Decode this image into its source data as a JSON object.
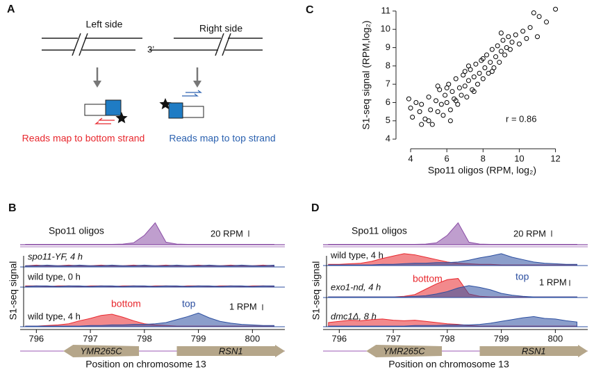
{
  "panel_a": {
    "label": "A",
    "left_side": "Left side",
    "right_side": "Right side",
    "end_label": "3’",
    "left_caption": "Reads map to bottom strand",
    "right_caption": "Reads map to top strand"
  },
  "chart_data": [
    {
      "type": "scatter",
      "label": "C",
      "xlabel": "Spo11 oligos (RPM, log₂)",
      "ylabel": "S1-seq signal (RPM,log₂)",
      "annotation": "r = 0.86",
      "color": "#000000",
      "xlim": [
        3.5,
        12.4
      ],
      "ylim": [
        3.7,
        11.3
      ],
      "xticks": [
        4,
        6,
        8,
        10,
        12
      ],
      "yticks": [
        4,
        5,
        6,
        7,
        8,
        9,
        10,
        11
      ],
      "x": [
        4.0,
        4.1,
        4.3,
        4.5,
        4.6,
        4.8,
        5.0,
        5.1,
        5.2,
        5.4,
        5.5,
        5.6,
        5.7,
        5.8,
        5.9,
        6.0,
        6.1,
        6.2,
        6.3,
        6.4,
        6.5,
        6.6,
        6.7,
        6.8,
        6.9,
        7.0,
        7.1,
        7.2,
        7.3,
        7.4,
        7.5,
        7.6,
        7.7,
        7.8,
        7.9,
        8.0,
        8.1,
        8.2,
        8.3,
        8.4,
        8.5,
        8.6,
        8.7,
        8.8,
        8.9,
        9.0,
        9.1,
        9.2,
        9.3,
        9.4,
        9.5,
        9.6,
        9.8,
        10.0,
        10.2,
        10.4,
        10.6,
        11.0,
        11.1,
        11.5,
        12.0,
        5.0,
        5.5,
        6.0,
        6.5,
        7.0,
        7.5,
        8.0,
        8.5,
        9.0,
        6.2,
        7.2,
        4.6,
        3.9,
        10.8
      ],
      "y": [
        5.7,
        5.2,
        6.0,
        5.5,
        5.9,
        5.1,
        6.3,
        5.6,
        4.8,
        6.1,
        5.5,
        6.7,
        5.9,
        5.3,
        6.4,
        6.0,
        7.0,
        5.6,
        6.6,
        6.2,
        7.3,
        5.9,
        6.8,
        6.4,
        7.5,
        6.9,
        6.3,
        7.2,
        7.8,
        6.7,
        7.4,
        8.1,
        7.0,
        7.6,
        8.3,
        7.3,
        7.9,
        8.6,
        7.6,
        8.2,
        8.9,
        7.9,
        8.5,
        9.1,
        8.2,
        8.8,
        9.4,
        8.6,
        9.0,
        9.6,
        8.9,
        9.3,
        9.7,
        9.2,
        9.9,
        9.5,
        10.1,
        9.6,
        10.7,
        10.4,
        11.1,
        5.0,
        6.9,
        6.8,
        6.1,
        7.7,
        6.6,
        8.4,
        7.7,
        9.8,
        5.0,
        8.0,
        4.8,
        6.2,
        10.9
      ]
    },
    {
      "type": "tracks",
      "label": "B",
      "xlabel": "Position on chromosome 13",
      "ylabel": "S1-seq signal",
      "xlim": [
        795.7,
        800.6
      ],
      "xticks": [
        796,
        797,
        798,
        799,
        800
      ],
      "x": [
        795.8,
        796.0,
        796.2,
        796.4,
        796.6,
        796.8,
        797.0,
        797.2,
        797.4,
        797.6,
        797.8,
        798.0,
        798.2,
        798.4,
        798.6,
        798.8,
        799.0,
        799.2,
        799.4,
        799.6,
        799.8,
        800.0,
        800.2,
        800.4
      ],
      "genes": [
        {
          "name": "YMR265C",
          "start": 796.5,
          "end": 797.9
        },
        {
          "name": "RSN1",
          "start": 798.6,
          "end": 800.6
        }
      ],
      "signal": {
        "name": "Spo11 oligos",
        "color": "#8b4ea6",
        "ylim": [
          0,
          80
        ],
        "scale": {
          "value": 20,
          "label": "20 RPM"
        },
        "values": [
          1,
          1,
          1,
          1,
          1,
          1,
          1,
          1,
          1,
          2,
          6,
          30,
          70,
          8,
          2,
          1,
          1,
          1,
          1,
          1,
          1,
          1,
          1,
          1
        ]
      },
      "s1_scale": {
        "value": 1,
        "label": "1 RPM"
      },
      "annotations": [
        "bottom",
        "top"
      ],
      "samples": [
        {
          "name": "spo11-YF, 4 h",
          "ylim": [
            0,
            3.5
          ],
          "series": [
            {
              "color": "#e8282e",
              "values": [
                0.2,
                0.3,
                0.2,
                0.2,
                0.3,
                0.2,
                0.2,
                0.3,
                0.2,
                0.2,
                0.3,
                0.2,
                0.2,
                0.3,
                0.2,
                0.2,
                0.3,
                0.2,
                0.2,
                0.3,
                0.2,
                0.2,
                0.3,
                0.2
              ]
            },
            {
              "color": "#2c4fa0",
              "values": [
                0.2,
                0.2,
                0.3,
                0.2,
                0.2,
                0.3,
                0.2,
                0.2,
                0.3,
                0.2,
                0.2,
                0.3,
                0.2,
                0.2,
                0.3,
                0.2,
                0.2,
                0.3,
                0.2,
                0.2,
                0.3,
                0.2,
                0.2,
                0.3
              ]
            }
          ]
        },
        {
          "name": "wild type, 0 h",
          "ylim": [
            0,
            3.5
          ],
          "series": [
            {
              "color": "#e8282e",
              "values": [
                0.2,
                0.2,
                0.1,
                0.2,
                0.2,
                0.1,
                0.2,
                0.2,
                0.1,
                0.2,
                0.2,
                0.1,
                0.2,
                0.2,
                0.1,
                0.2,
                0.2,
                0.1,
                0.2,
                0.2,
                0.1,
                0.2,
                0.2,
                0.1
              ]
            },
            {
              "color": "#2c4fa0",
              "values": [
                0.1,
                0.2,
                0.2,
                0.1,
                0.2,
                0.2,
                0.1,
                0.2,
                0.2,
                0.1,
                0.2,
                0.2,
                0.1,
                0.2,
                0.2,
                0.1,
                0.2,
                0.2,
                0.1,
                0.2,
                0.2,
                0.1,
                0.2,
                0.2
              ]
            }
          ]
        },
        {
          "name": "wild type, 4 h",
          "ylim": [
            0,
            3.5
          ],
          "series": [
            {
              "color": "#e8282e",
              "values": [
                0.1,
                0.1,
                0.2,
                0.3,
                0.5,
                1.0,
                1.4,
                1.9,
                2.1,
                1.6,
                1.0,
                0.5,
                0.3,
                0.2,
                0.1,
                0.1,
                0.1,
                0.1,
                0.1,
                0.1,
                0.1,
                0.1,
                0.1,
                0.1
              ]
            },
            {
              "color": "#2c4fa0",
              "values": [
                0.1,
                0.1,
                0.1,
                0.1,
                0.1,
                0.1,
                0.2,
                0.2,
                0.3,
                0.3,
                0.4,
                0.4,
                0.5,
                0.7,
                1.2,
                1.7,
                2.3,
                1.5,
                0.9,
                0.6,
                0.4,
                0.3,
                0.2,
                0.2
              ]
            }
          ]
        }
      ]
    },
    {
      "type": "tracks",
      "label": "D",
      "xlabel": "Position on chromosome 13",
      "ylabel": "S1-seq signal",
      "xlim": [
        795.7,
        800.6
      ],
      "xticks": [
        796,
        797,
        798,
        799,
        800
      ],
      "x": [
        795.8,
        796.0,
        796.2,
        796.4,
        796.6,
        796.8,
        797.0,
        797.2,
        797.4,
        797.6,
        797.8,
        798.0,
        798.2,
        798.4,
        798.6,
        798.8,
        799.0,
        799.2,
        799.4,
        799.6,
        799.8,
        800.0,
        800.2,
        800.4
      ],
      "genes": [
        {
          "name": "YMR265C",
          "start": 796.5,
          "end": 797.9
        },
        {
          "name": "RSN1",
          "start": 798.6,
          "end": 800.6
        }
      ],
      "signal": {
        "name": "Spo11 oligos",
        "color": "#8b4ea6",
        "ylim": [
          0,
          80
        ],
        "scale": {
          "value": 20,
          "label": "20 RPM"
        },
        "values": [
          1,
          1,
          1,
          1,
          1,
          1,
          1,
          1,
          1,
          2,
          6,
          30,
          70,
          8,
          2,
          1,
          1,
          1,
          1,
          1,
          1,
          1,
          1,
          1
        ]
      },
      "s1_scale": {
        "value": 1,
        "label": "1 RPM"
      },
      "annotations": [
        "bottom",
        "top"
      ],
      "samples": [
        {
          "name": "wild type, 4 h",
          "ylim": [
            0,
            3.5
          ],
          "series": [
            {
              "color": "#e8282e",
              "values": [
                0.2,
                0.2,
                0.3,
                0.4,
                0.7,
                1.2,
                1.6,
                2.0,
                1.8,
                1.4,
                1.0,
                0.6,
                0.4,
                0.3,
                0.2,
                0.2,
                0.1,
                0.1,
                0.1,
                0.1,
                0.1,
                0.1,
                0.1,
                0.1
              ]
            },
            {
              "color": "#2c4fa0",
              "values": [
                0.1,
                0.1,
                0.1,
                0.1,
                0.1,
                0.2,
                0.2,
                0.3,
                0.4,
                0.4,
                0.5,
                0.5,
                0.6,
                0.9,
                1.3,
                1.6,
                2.0,
                1.4,
                1.0,
                0.6,
                0.4,
                0.3,
                0.2,
                0.2
              ]
            }
          ]
        },
        {
          "name": "exo1-nd, 4 h",
          "ylim": [
            0,
            3.5
          ],
          "series": [
            {
              "color": "#e8282e",
              "values": [
                0.1,
                0.1,
                0.1,
                0.1,
                0.1,
                0.1,
                0.1,
                0.2,
                0.5,
                1.4,
                2.3,
                3.0,
                3.2,
                0.6,
                0.2,
                0.1,
                0.1,
                0.1,
                0.1,
                0.1,
                0.1,
                0.1,
                0.1,
                0.1
              ]
            },
            {
              "color": "#2c4fa0",
              "values": [
                0.1,
                0.1,
                0.1,
                0.1,
                0.1,
                0.1,
                0.1,
                0.1,
                0.2,
                0.3,
                0.6,
                1.0,
                1.6,
                2.0,
                1.7,
                1.3,
                0.7,
                0.4,
                0.2,
                0.1,
                0.1,
                0.1,
                0.1,
                0.1
              ]
            }
          ]
        },
        {
          "name": "dmc1Δ, 8 h",
          "ylim": [
            0,
            3.5
          ],
          "series": [
            {
              "color": "#e8282e",
              "values": [
                0.7,
                0.9,
                1.1,
                1.0,
                1.2,
                1.3,
                1.1,
                1.0,
                1.1,
                0.9,
                0.7,
                0.5,
                0.4,
                0.2,
                0.1,
                0.1,
                0.1,
                0.1,
                0.1,
                0.1,
                0.1,
                0.1,
                0.1,
                0.1
              ]
            },
            {
              "color": "#2c4fa0",
              "values": [
                0.1,
                0.1,
                0.1,
                0.1,
                0.1,
                0.1,
                0.1,
                0.1,
                0.2,
                0.2,
                0.2,
                0.3,
                0.3,
                0.3,
                0.4,
                0.6,
                0.9,
                1.2,
                1.5,
                1.7,
                1.4,
                1.3,
                1.0,
                0.8
              ]
            }
          ]
        }
      ]
    }
  ]
}
